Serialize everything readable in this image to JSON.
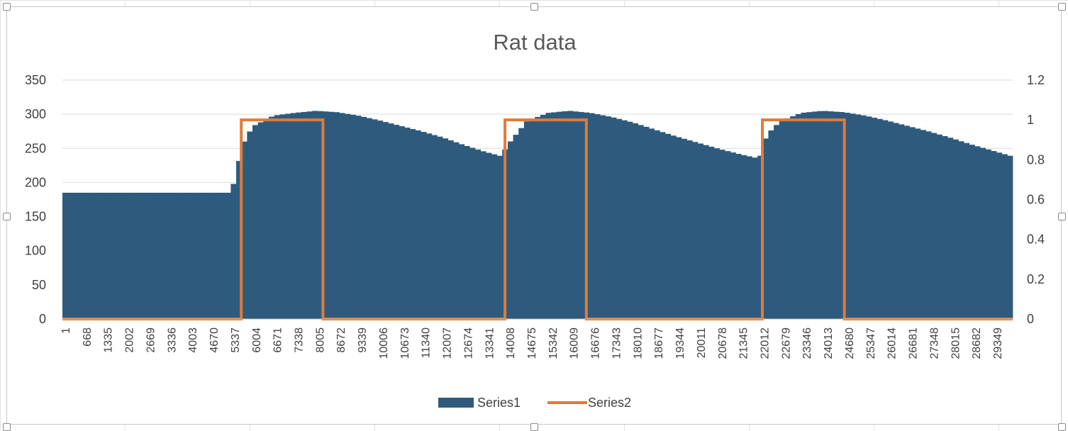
{
  "chart_data": {
    "type": "bar",
    "title": "Rat data",
    "y_left": {
      "min": 0,
      "max": 350,
      "step": 50,
      "ticks": [
        "0",
        "50",
        "100",
        "150",
        "200",
        "250",
        "300",
        "350"
      ]
    },
    "y_right": {
      "min": 0,
      "max": 1.2,
      "step": 0.2,
      "ticks": [
        "0",
        "0.2",
        "0.4",
        "0.6",
        "0.8",
        "1",
        "1.2"
      ]
    },
    "x": {
      "min": 1,
      "max": 30016,
      "tick_labels": [
        "1",
        "668",
        "1335",
        "2002",
        "2669",
        "3336",
        "4003",
        "4670",
        "5337",
        "6004",
        "6671",
        "7338",
        "8005",
        "8672",
        "9339",
        "10006",
        "10673",
        "11340",
        "12007",
        "12674",
        "13341",
        "14008",
        "14675",
        "15342",
        "16009",
        "16676",
        "17343",
        "18010",
        "18677",
        "19344",
        "20011",
        "20678",
        "21345",
        "22012",
        "22679",
        "23346",
        "24013",
        "24680",
        "25347",
        "26014",
        "26681",
        "27348",
        "28015",
        "28682",
        "29349"
      ]
    },
    "gridlines": true,
    "legend_position": "bottom",
    "series": [
      {
        "name": "Series1",
        "type": "bar",
        "axis": "left",
        "color": "#2e5b7d",
        "points": [
          [
            1,
            185
          ],
          [
            5337,
            185
          ],
          [
            5338,
            185
          ],
          [
            5700,
            256
          ],
          [
            6004,
            282
          ],
          [
            6671,
            298
          ],
          [
            7338,
            302
          ],
          [
            8005,
            305
          ],
          [
            8672,
            303
          ],
          [
            9339,
            298
          ],
          [
            10006,
            291
          ],
          [
            10673,
            283
          ],
          [
            11340,
            275
          ],
          [
            12007,
            266
          ],
          [
            12674,
            255
          ],
          [
            13341,
            245
          ],
          [
            13900,
            238
          ],
          [
            14008,
            252
          ],
          [
            14675,
            290
          ],
          [
            15342,
            302
          ],
          [
            16009,
            305
          ],
          [
            16676,
            302
          ],
          [
            17343,
            296
          ],
          [
            18010,
            288
          ],
          [
            18677,
            278
          ],
          [
            19344,
            268
          ],
          [
            20011,
            259
          ],
          [
            20678,
            250
          ],
          [
            21345,
            242
          ],
          [
            22012,
            235
          ],
          [
            22250,
            270
          ],
          [
            22679,
            290
          ],
          [
            23346,
            302
          ],
          [
            24013,
            305
          ],
          [
            24680,
            303
          ],
          [
            25347,
            298
          ],
          [
            26014,
            291
          ],
          [
            26681,
            283
          ],
          [
            27348,
            275
          ],
          [
            28015,
            266
          ],
          [
            28682,
            256
          ],
          [
            29349,
            247
          ],
          [
            30016,
            238
          ]
        ]
      },
      {
        "name": "Series2",
        "type": "line",
        "axis": "right",
        "color": "#e07b39",
        "points": [
          [
            1,
            0
          ],
          [
            5650,
            0
          ],
          [
            5650,
            1
          ],
          [
            8230,
            1
          ],
          [
            8230,
            0
          ],
          [
            13980,
            0
          ],
          [
            13980,
            1
          ],
          [
            16550,
            1
          ],
          [
            16550,
            0
          ],
          [
            22110,
            0
          ],
          [
            22110,
            1
          ],
          [
            24700,
            1
          ],
          [
            24700,
            0
          ],
          [
            30016,
            0
          ]
        ]
      }
    ]
  }
}
